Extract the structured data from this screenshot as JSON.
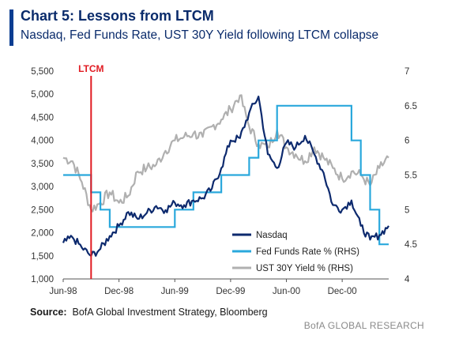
{
  "header": {
    "title": "Chart 5: Lessons from LTCM",
    "subtitle": "Nasdaq, Fed Funds Rate, UST 30Y Yield following LTCM collapse"
  },
  "footer": {
    "source_label": "Source:",
    "source_text": "BofA Global Investment Strategy, Bloomberg",
    "brand": "BofA GLOBAL RESEARCH"
  },
  "chart_data": {
    "type": "line",
    "title": "Chart 5: Lessons from LTCM",
    "subtitle": "Nasdaq, Fed Funds Rate, UST 30Y Yield following LTCM collapse",
    "x_range": [
      "1998-06",
      "2001-05"
    ],
    "x_ticks": [
      {
        "date": "1998-06",
        "label": "Jun-98"
      },
      {
        "date": "1998-12",
        "label": "Dec-98"
      },
      {
        "date": "1999-06",
        "label": "Jun-99"
      },
      {
        "date": "1999-12",
        "label": "Dec-99"
      },
      {
        "date": "2000-06",
        "label": "Jun-00"
      },
      {
        "date": "2000-12",
        "label": "Dec-00"
      }
    ],
    "y_left": {
      "range": [
        1000,
        5500
      ],
      "ticks": [
        "1,000",
        "1,500",
        "2,000",
        "2,500",
        "3,000",
        "3,500",
        "4,000",
        "4,500",
        "5,000",
        "5,500"
      ],
      "tick_values": [
        1000,
        1500,
        2000,
        2500,
        3000,
        3500,
        4000,
        4500,
        5000,
        5500
      ]
    },
    "y_right": {
      "range": [
        4,
        7
      ],
      "ticks": [
        "4",
        "4.5",
        "5",
        "5.5",
        "6",
        "6.5",
        "7"
      ],
      "tick_values": [
        4,
        4.5,
        5,
        5.5,
        6,
        6.5,
        7
      ]
    },
    "grid": false,
    "legend_position": "bottom-right",
    "annotation": {
      "label": "LTCM",
      "date": "1998-09",
      "color": "#e11b22"
    },
    "series": [
      {
        "name": "Nasdaq",
        "axis": "left",
        "color": "#0d2a6e",
        "style": "noisy",
        "points": [
          [
            "1998-06",
            1780
          ],
          [
            "1998-07",
            1900
          ],
          [
            "1998-08",
            1680
          ],
          [
            "1998-09",
            1500
          ],
          [
            "1998-10",
            1650
          ],
          [
            "1998-11",
            1930
          ],
          [
            "1998-12",
            2150
          ],
          [
            "1999-01",
            2450
          ],
          [
            "1999-02",
            2300
          ],
          [
            "1999-03",
            2430
          ],
          [
            "1999-04",
            2580
          ],
          [
            "1999-05",
            2490
          ],
          [
            "1999-06",
            2650
          ],
          [
            "1999-07",
            2600
          ],
          [
            "1999-08",
            2700
          ],
          [
            "1999-09",
            2750
          ],
          [
            "1999-10",
            2960
          ],
          [
            "1999-11",
            3400
          ],
          [
            "1999-12",
            4000
          ],
          [
            "2000-01",
            4050
          ],
          [
            "2000-02",
            4600
          ],
          [
            "2000-03",
            4950
          ],
          [
            "2000-04",
            3700
          ],
          [
            "2000-05",
            3400
          ],
          [
            "2000-06",
            3950
          ],
          [
            "2000-07",
            3850
          ],
          [
            "2000-08",
            4100
          ],
          [
            "2000-09",
            3700
          ],
          [
            "2000-10",
            3300
          ],
          [
            "2000-11",
            2600
          ],
          [
            "2000-12",
            2500
          ],
          [
            "2001-01",
            2700
          ],
          [
            "2001-02",
            2150
          ],
          [
            "2001-03",
            1850
          ],
          [
            "2001-04",
            1950
          ],
          [
            "2001-05",
            2150
          ]
        ]
      },
      {
        "name": "Fed Funds Rate % (RHS)",
        "axis": "right",
        "color": "#2aa8dc",
        "style": "step",
        "points": [
          [
            "1998-06",
            5.5
          ],
          [
            "1998-09",
            5.25
          ],
          [
            "1998-10",
            5.0
          ],
          [
            "1998-11",
            4.75
          ],
          [
            "1999-06",
            5.0
          ],
          [
            "1999-08",
            5.25
          ],
          [
            "1999-11",
            5.5
          ],
          [
            "2000-02",
            5.75
          ],
          [
            "2000-03",
            6.0
          ],
          [
            "2000-05",
            6.5
          ],
          [
            "2001-01",
            6.0
          ],
          [
            "2001-02",
            5.5
          ],
          [
            "2001-03",
            5.0
          ],
          [
            "2001-04",
            4.5
          ],
          [
            "2001-05",
            4.5
          ]
        ]
      },
      {
        "name": "UST 30Y Yield % (RHS)",
        "axis": "right",
        "color": "#b0b0b0",
        "style": "noisy",
        "points": [
          [
            "1998-06",
            5.75
          ],
          [
            "1998-07",
            5.7
          ],
          [
            "1998-08",
            5.4
          ],
          [
            "1998-09",
            5.0
          ],
          [
            "1998-10",
            5.1
          ],
          [
            "1998-11",
            5.25
          ],
          [
            "1998-12",
            5.1
          ],
          [
            "1999-01",
            5.2
          ],
          [
            "1999-02",
            5.55
          ],
          [
            "1999-03",
            5.6
          ],
          [
            "1999-04",
            5.65
          ],
          [
            "1999-05",
            5.85
          ],
          [
            "1999-06",
            6.0
          ],
          [
            "1999-07",
            6.05
          ],
          [
            "1999-08",
            6.1
          ],
          [
            "1999-09",
            6.05
          ],
          [
            "1999-10",
            6.2
          ],
          [
            "1999-11",
            6.3
          ],
          [
            "1999-12",
            6.45
          ],
          [
            "2000-01",
            6.65
          ],
          [
            "2000-02",
            6.2
          ],
          [
            "2000-03",
            5.95
          ],
          [
            "2000-04",
            5.9
          ],
          [
            "2000-05",
            6.15
          ],
          [
            "2000-06",
            5.9
          ],
          [
            "2000-07",
            5.8
          ],
          [
            "2000-08",
            5.7
          ],
          [
            "2000-09",
            5.9
          ],
          [
            "2000-10",
            5.75
          ],
          [
            "2000-11",
            5.6
          ],
          [
            "2000-12",
            5.45
          ],
          [
            "2001-01",
            5.55
          ],
          [
            "2001-02",
            5.5
          ],
          [
            "2001-03",
            5.35
          ],
          [
            "2001-04",
            5.6
          ],
          [
            "2001-05",
            5.75
          ]
        ]
      }
    ]
  }
}
